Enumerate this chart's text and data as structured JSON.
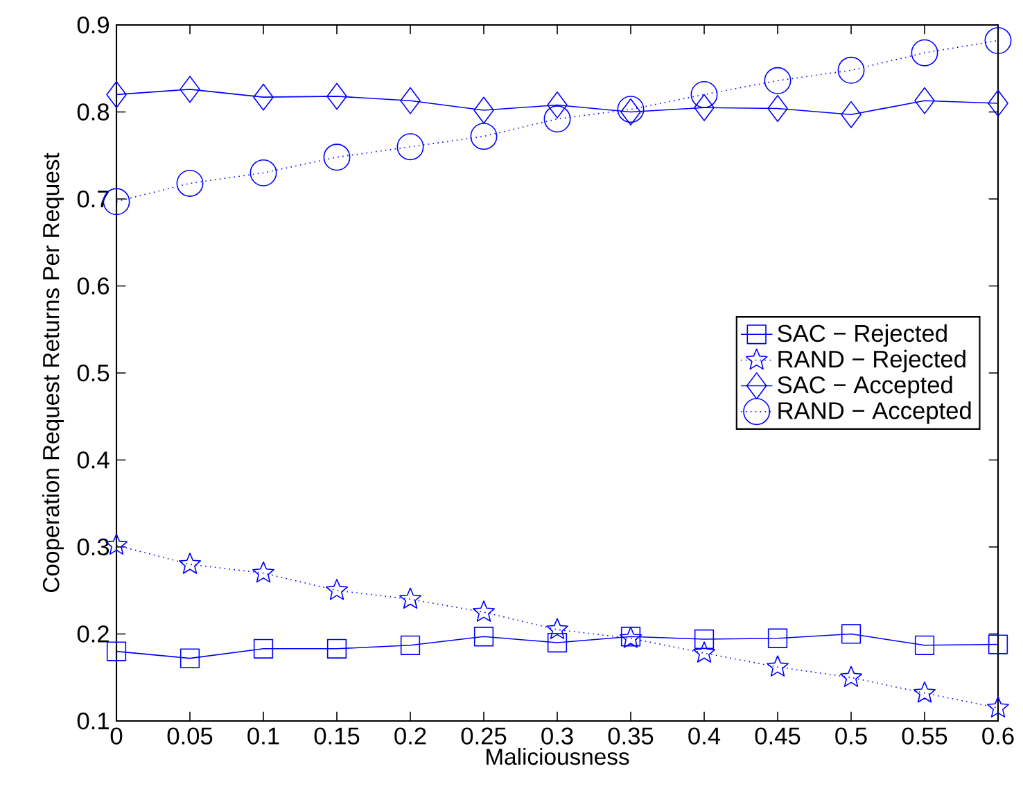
{
  "chart_data": {
    "type": "line",
    "xlabel": "Maliciousness",
    "ylabel": "Cooperation Request Returns Per Request",
    "x": [
      0,
      0.05,
      0.1,
      0.15,
      0.2,
      0.25,
      0.3,
      0.35,
      0.4,
      0.45,
      0.5,
      0.55,
      0.6
    ],
    "xlim": [
      0,
      0.6
    ],
    "xticks": [
      0,
      0.05,
      0.1,
      0.15,
      0.2,
      0.25,
      0.3,
      0.35,
      0.4,
      0.45,
      0.5,
      0.55,
      0.6
    ],
    "ylim": [
      0.1,
      0.9
    ],
    "yticks": [
      0.1,
      0.2,
      0.3,
      0.4,
      0.5,
      0.6,
      0.7,
      0.8,
      0.9
    ],
    "legend": "right",
    "series": [
      {
        "name": "SAC − Rejected",
        "color": "#0000ff",
        "marker": "square",
        "line_style": "solid",
        "values": [
          0.18,
          0.172,
          0.183,
          0.183,
          0.187,
          0.197,
          0.19,
          0.197,
          0.194,
          0.195,
          0.2,
          0.187,
          0.188
        ]
      },
      {
        "name": "RAND − Rejected",
        "color": "#0000ff",
        "marker": "star",
        "line_style": "dotted",
        "values": [
          0.302,
          0.28,
          0.27,
          0.25,
          0.24,
          0.225,
          0.205,
          0.195,
          0.178,
          0.162,
          0.15,
          0.132,
          0.115
        ]
      },
      {
        "name": "SAC − Accepted",
        "color": "#0000ff",
        "marker": "diamond",
        "line_style": "solid",
        "values": [
          0.82,
          0.826,
          0.817,
          0.818,
          0.813,
          0.802,
          0.808,
          0.8,
          0.805,
          0.804,
          0.797,
          0.813,
          0.81
        ]
      },
      {
        "name": "RAND − Accepted",
        "color": "#0000ff",
        "marker": "circle",
        "line_style": "dotted",
        "values": [
          0.697,
          0.718,
          0.73,
          0.748,
          0.76,
          0.772,
          0.792,
          0.803,
          0.82,
          0.836,
          0.848,
          0.868,
          0.882
        ]
      }
    ]
  }
}
